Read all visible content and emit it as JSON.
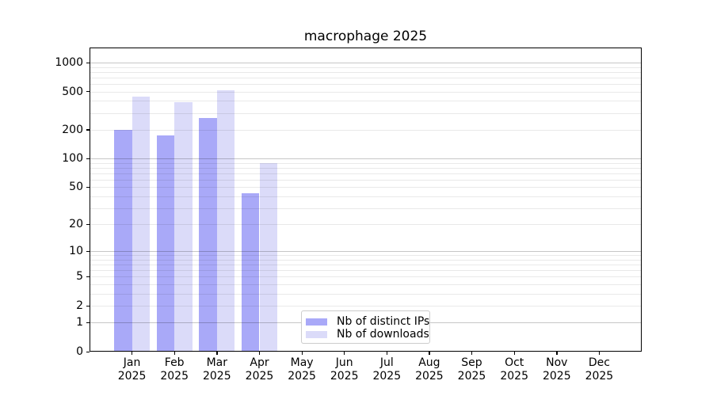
{
  "title": "macrophage 2025",
  "chart_data": {
    "type": "bar",
    "title": "macrophage 2025",
    "y_scale": "log10(value+1)",
    "grid": "on",
    "legend_position": "lower center",
    "categories": [
      {
        "month": "Jan",
        "year": "2025"
      },
      {
        "month": "Feb",
        "year": "2025"
      },
      {
        "month": "Mar",
        "year": "2025"
      },
      {
        "month": "Apr",
        "year": "2025"
      },
      {
        "month": "May",
        "year": "2025"
      },
      {
        "month": "Jun",
        "year": "2025"
      },
      {
        "month": "Jul",
        "year": "2025"
      },
      {
        "month": "Aug",
        "year": "2025"
      },
      {
        "month": "Sep",
        "year": "2025"
      },
      {
        "month": "Oct",
        "year": "2025"
      },
      {
        "month": "Nov",
        "year": "2025"
      },
      {
        "month": "Dec",
        "year": "2025"
      }
    ],
    "series": [
      {
        "name": "Nb of distinct IPs",
        "color": "#a9a9f8",
        "values": [
          200,
          175,
          263,
          43,
          null,
          null,
          null,
          null,
          null,
          null,
          null,
          null
        ]
      },
      {
        "name": "Nb of downloads",
        "color": "#dbdbf9",
        "values": [
          445,
          385,
          520,
          89,
          null,
          null,
          null,
          null,
          null,
          null,
          null,
          null
        ]
      }
    ],
    "y_ticks": [
      0,
      1,
      2,
      5,
      10,
      20,
      50,
      100,
      200,
      500,
      1000
    ],
    "ylim": [
      0,
      1433
    ]
  },
  "colors": {
    "bar_distinct_ips": "#a9a9f8",
    "bar_downloads": "#dbdbf9",
    "major_grid": "#c7c7c7",
    "minor_grid": "#ebebeb",
    "axis_spine": "#000000",
    "legend_border": "#cccccc",
    "background": "#ffffff",
    "text": "#000000"
  }
}
